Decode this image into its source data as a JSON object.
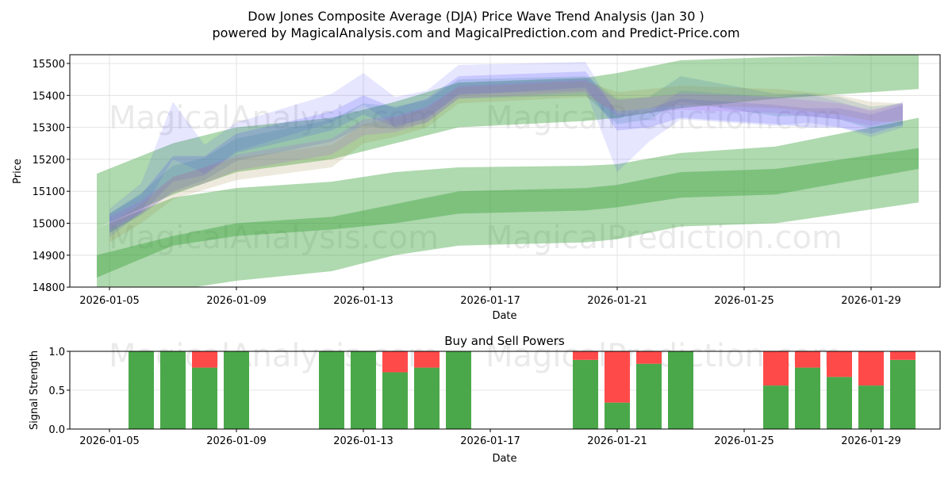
{
  "title_line1": "Dow Jones Composite Average (DJA) Price Wave Trend Analysis (Jan 30 )",
  "title_line2": "powered by MagicalAnalysis.com and MagicalPrediction.com and Predict-Price.com",
  "watermarks": [
    "MagicalAnalysis.com",
    "MagicalPrediction.com"
  ],
  "chart_data": [
    {
      "type": "area",
      "title": "",
      "xlabel": "Date",
      "ylabel": "Price",
      "xlim_day_of_jan": [
        3.75,
        31.18
      ],
      "ylim": [
        14800,
        15530
      ],
      "yticks": [
        14800,
        14900,
        15000,
        15100,
        15200,
        15300,
        15400,
        15500
      ],
      "xticks": [
        5,
        9,
        13,
        17,
        21,
        25,
        29
      ],
      "xtick_labels": [
        "2026-01-05",
        "2026-01-09",
        "2026-01-13",
        "2026-01-17",
        "2026-01-21",
        "2026-01-25",
        "2026-01-29"
      ],
      "grid": true,
      "green_days": [
        4.6,
        7,
        9,
        12,
        14,
        16,
        20,
        21,
        23,
        26,
        30.5
      ],
      "green_bands": [
        {
          "upper": [
            15155,
            15250,
            15300,
            15330,
            15380,
            15440,
            15455,
            15470,
            15510,
            15520,
            15530
          ],
          "lower": [
            14985,
            15090,
            15160,
            15200,
            15250,
            15300,
            15320,
            15330,
            15360,
            15390,
            15420
          ]
        },
        {
          "upper": [
            14985,
            15080,
            15110,
            15130,
            15160,
            15175,
            15180,
            15185,
            15220,
            15240,
            15330
          ],
          "lower": [
            14830,
            14930,
            14960,
            14980,
            15000,
            15030,
            15040,
            15050,
            15080,
            15090,
            15170
          ]
        },
        {
          "upper": [
            14900,
            14960,
            15000,
            15020,
            15060,
            15100,
            15110,
            15120,
            15160,
            15170,
            15235
          ],
          "lower": [
            14760,
            14790,
            14820,
            14850,
            14900,
            14930,
            14940,
            14950,
            14990,
            15000,
            15065
          ]
        }
      ],
      "wave_days": [
        5,
        6,
        7,
        8,
        9,
        12,
        13,
        14,
        15,
        16,
        20,
        21,
        22,
        23,
        26,
        27,
        28,
        29,
        30
      ],
      "wave_bands": [
        {
          "color": "#4040ff",
          "alpha": 0.13,
          "offset": 0,
          "center": [
            15000,
            15080,
            15290,
            15200,
            15270,
            15360,
            15420,
            15350,
            15370,
            15450,
            15460,
            15250,
            15300,
            15370,
            15350,
            15360,
            15340,
            15310,
            15340
          ],
          "half": [
            45,
            45,
            90,
            45,
            45,
            45,
            50,
            45,
            45,
            45,
            45,
            90,
            45,
            45,
            45,
            45,
            40,
            40,
            40
          ]
        },
        {
          "color": "#4040ff",
          "alpha": 0.18,
          "offset": 0,
          "center": [
            15000,
            15060,
            15170,
            15180,
            15250,
            15320,
            15370,
            15330,
            15360,
            15430,
            15450,
            15320,
            15330,
            15360,
            15340,
            15330,
            15330,
            15310,
            15340
          ],
          "half": [
            30,
            30,
            40,
            30,
            30,
            30,
            30,
            30,
            30,
            30,
            25,
            30,
            30,
            30,
            30,
            30,
            30,
            30,
            30
          ]
        },
        {
          "color": "#3a7f9f",
          "alpha": 0.2,
          "offset": 0,
          "center": [
            15000,
            15060,
            15140,
            15170,
            15230,
            15290,
            15340,
            15330,
            15350,
            15420,
            15430,
            15350,
            15360,
            15420,
            15370,
            15370,
            15360,
            15330,
            15340
          ],
          "half": [
            30,
            35,
            40,
            35,
            35,
            35,
            35,
            35,
            35,
            30,
            30,
            40,
            35,
            40,
            35,
            35,
            35,
            35,
            35
          ]
        },
        {
          "color": "#9a8a40",
          "alpha": 0.18,
          "offset": 0,
          "center": [
            14970,
            15030,
            15110,
            15140,
            15170,
            15210,
            15280,
            15300,
            15330,
            15400,
            15420,
            15380,
            15390,
            15400,
            15390,
            15380,
            15370,
            15350,
            15345
          ],
          "half": [
            30,
            30,
            35,
            35,
            35,
            35,
            30,
            30,
            30,
            25,
            25,
            30,
            30,
            30,
            30,
            30,
            30,
            30,
            30
          ]
        },
        {
          "color": "#b060e0",
          "alpha": 0.2,
          "offset": 0,
          "center": [
            15000,
            15050,
            15120,
            15150,
            15190,
            15240,
            15300,
            15310,
            15340,
            15410,
            15430,
            15360,
            15370,
            15380,
            15370,
            15360,
            15350,
            15330,
            15350
          ],
          "half": [
            20,
            20,
            25,
            25,
            25,
            25,
            25,
            25,
            25,
            20,
            20,
            25,
            25,
            25,
            25,
            25,
            25,
            25,
            25
          ]
        }
      ]
    },
    {
      "type": "bar",
      "title": "Buy and Sell Powers",
      "xlabel": "Date",
      "ylabel": "Signal Strength",
      "ylim": [
        0,
        1
      ],
      "yticks": [
        0.0,
        0.5,
        1.0
      ],
      "ytick_labels": [
        "0.0",
        "0.5",
        "1.0"
      ],
      "xticks": [
        5,
        9,
        13,
        17,
        21,
        25,
        29
      ],
      "xtick_labels": [
        "2026-01-05",
        "2026-01-09",
        "2026-01-13",
        "2026-01-17",
        "2026-01-21",
        "2026-01-25",
        "2026-01-29"
      ],
      "days": [
        6,
        7,
        8,
        9,
        12,
        13,
        14,
        15,
        16,
        20,
        21,
        22,
        23,
        26,
        27,
        28,
        29,
        30
      ],
      "buy": [
        1.0,
        1.0,
        0.79,
        1.0,
        1.0,
        1.0,
        0.73,
        0.79,
        1.0,
        0.89,
        0.34,
        0.84,
        1.0,
        0.56,
        0.79,
        0.67,
        0.56,
        0.89
      ],
      "buy_color": "#4aa84a",
      "sell_color": "#ff4a4a"
    }
  ]
}
